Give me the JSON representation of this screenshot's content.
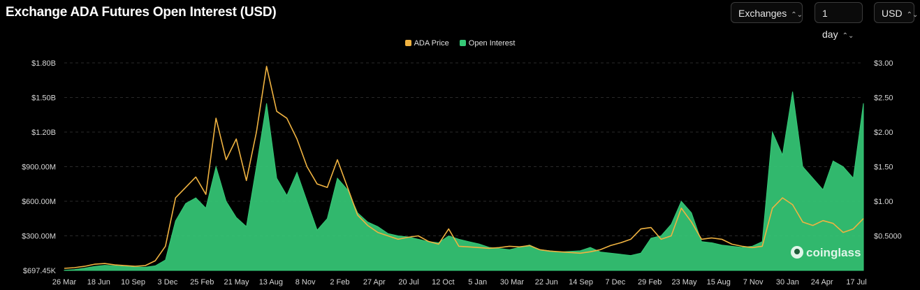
{
  "header": {
    "title": "Exchange ADA Futures Open Interest (USD)",
    "exchanges_label": "Exchanges",
    "interval_label": "1 day",
    "currency_label": "USD"
  },
  "watermark": "coinglass",
  "colors": {
    "background": "#000000",
    "price": "#f0b341",
    "open_interest": "#35c876",
    "grid": "#2a2a2a"
  },
  "chart_data": {
    "type": "area",
    "title": "Exchange ADA Futures Open Interest (USD)",
    "legend_position": "top-center",
    "grid": true,
    "x_ticks": [
      "26 Mar",
      "18 Jun",
      "10 Sep",
      "3 Dec",
      "25 Feb",
      "21 May",
      "13 Aug",
      "8 Nov",
      "2 Feb",
      "27 Apr",
      "20 Jul",
      "12 Oct",
      "5 Jan",
      "30 Mar",
      "22 Jun",
      "14 Sep",
      "7 Dec",
      "29 Feb",
      "23 May",
      "15 Aug",
      "7 Nov",
      "30 Jan",
      "24 Apr",
      "17 Jul"
    ],
    "y_left": {
      "ticks": [
        "$697.45K",
        "$300.00M",
        "$600.00M",
        "$900.00M",
        "$1.20B",
        "$1.50B",
        "$1.80B"
      ],
      "range": [
        0,
        1800000000
      ]
    },
    "y_right": {
      "ticks": [
        "$0.5000",
        "$1.00",
        "$1.50",
        "$2.00",
        "$2.50",
        "$3.00"
      ],
      "range": [
        0,
        3.0
      ]
    },
    "series": [
      {
        "name": "Open Interest",
        "axis": "left",
        "unit": "USD",
        "values": [
          2000000,
          8000000,
          20000000,
          35000000,
          45000000,
          40000000,
          35000000,
          30000000,
          28000000,
          40000000,
          90000000,
          430000000,
          580000000,
          630000000,
          540000000,
          900000000,
          600000000,
          460000000,
          380000000,
          900000000,
          1450000000,
          800000000,
          650000000,
          850000000,
          600000000,
          350000000,
          450000000,
          800000000,
          700000000,
          500000000,
          420000000,
          380000000,
          320000000,
          300000000,
          290000000,
          270000000,
          250000000,
          240000000,
          300000000,
          270000000,
          250000000,
          230000000,
          200000000,
          190000000,
          180000000,
          200000000,
          220000000,
          180000000,
          170000000,
          160000000,
          165000000,
          170000000,
          200000000,
          160000000,
          150000000,
          140000000,
          130000000,
          150000000,
          280000000,
          300000000,
          400000000,
          600000000,
          500000000,
          250000000,
          240000000,
          220000000,
          210000000,
          200000000,
          210000000,
          250000000,
          1200000000,
          1000000000,
          1550000000,
          900000000,
          800000000,
          700000000,
          950000000,
          900000000,
          800000000,
          1450000000
        ]
      },
      {
        "name": "ADA Price",
        "axis": "right",
        "unit": "USD",
        "values": [
          0.03,
          0.04,
          0.06,
          0.09,
          0.1,
          0.08,
          0.07,
          0.06,
          0.07,
          0.14,
          0.35,
          1.05,
          1.2,
          1.35,
          1.1,
          2.2,
          1.6,
          1.9,
          1.3,
          2.0,
          2.95,
          2.3,
          2.2,
          1.9,
          1.5,
          1.25,
          1.2,
          1.6,
          1.2,
          0.8,
          0.65,
          0.55,
          0.5,
          0.45,
          0.48,
          0.5,
          0.42,
          0.38,
          0.6,
          0.35,
          0.34,
          0.33,
          0.32,
          0.33,
          0.35,
          0.34,
          0.36,
          0.3,
          0.28,
          0.27,
          0.26,
          0.25,
          0.27,
          0.3,
          0.36,
          0.4,
          0.45,
          0.6,
          0.62,
          0.45,
          0.5,
          0.9,
          0.7,
          0.45,
          0.47,
          0.45,
          0.38,
          0.35,
          0.33,
          0.35,
          0.9,
          1.05,
          0.95,
          0.7,
          0.65,
          0.72,
          0.68,
          0.55,
          0.6,
          0.75
        ]
      }
    ]
  }
}
